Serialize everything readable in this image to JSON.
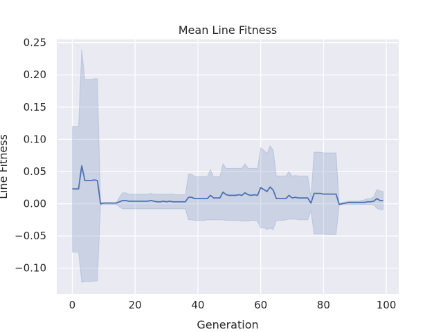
{
  "chart_data": {
    "type": "line",
    "title": "Mean Line Fitness",
    "xlabel": "Generation",
    "ylabel": "Line Fitness",
    "xlim": [
      -4.95,
      103.95
    ],
    "ylim": [
      -0.14,
      0.255
    ],
    "xticks": [
      0,
      20,
      40,
      60,
      80,
      100
    ],
    "yticks": [
      -0.1,
      -0.05,
      0.0,
      0.05,
      0.1,
      0.15,
      0.2,
      0.25
    ],
    "ytick_labels": [
      "−0.10",
      "−0.05",
      "0.00",
      "0.05",
      "0.10",
      "0.15",
      "0.20",
      "0.25"
    ],
    "grid": true,
    "colors": {
      "background": "#eaeaf2",
      "grid": "#ffffff",
      "line": "#4c72b0",
      "band": "#4c72b0"
    },
    "series": [
      {
        "x": [
          0,
          1,
          2,
          3,
          4,
          5,
          6,
          7,
          8,
          9,
          10,
          11,
          12,
          13,
          14,
          15,
          16,
          17,
          18,
          19,
          20,
          21,
          22,
          23,
          24,
          25,
          26,
          27,
          28,
          29,
          30,
          31,
          32,
          33,
          34,
          35,
          36,
          37,
          38,
          39,
          40,
          41,
          42,
          43,
          44,
          45,
          46,
          47,
          48,
          49,
          50,
          51,
          52,
          53,
          54,
          55,
          56,
          57,
          58,
          59,
          60,
          61,
          62,
          63,
          64,
          65,
          66,
          67,
          68,
          69,
          70,
          71,
          72,
          73,
          74,
          75,
          76,
          77,
          78,
          79,
          80,
          81,
          82,
          83,
          84,
          85,
          86,
          87,
          88,
          89,
          90,
          91,
          92,
          93,
          94,
          95,
          96,
          97,
          98,
          99
        ],
        "y": [
          0.023,
          0.023,
          0.023,
          0.059,
          0.036,
          0.036,
          0.036,
          0.037,
          0.036,
          0.0,
          0.001,
          0.001,
          0.001,
          0.001,
          0.001,
          0.003,
          0.005,
          0.005,
          0.004,
          0.004,
          0.004,
          0.004,
          0.004,
          0.004,
          0.004,
          0.005,
          0.004,
          0.003,
          0.003,
          0.004,
          0.003,
          0.004,
          0.003,
          0.003,
          0.003,
          0.003,
          0.003,
          0.01,
          0.01,
          0.008,
          0.008,
          0.008,
          0.008,
          0.008,
          0.013,
          0.009,
          0.009,
          0.009,
          0.018,
          0.014,
          0.013,
          0.013,
          0.013,
          0.014,
          0.013,
          0.017,
          0.014,
          0.013,
          0.014,
          0.013,
          0.025,
          0.022,
          0.019,
          0.026,
          0.021,
          0.008,
          0.008,
          0.008,
          0.008,
          0.013,
          0.009,
          0.01,
          0.009,
          0.009,
          0.009,
          0.009,
          0.001,
          0.016,
          0.016,
          0.016,
          0.015,
          0.015,
          0.015,
          0.015,
          0.015,
          -0.001,
          0.0,
          0.001,
          0.002,
          0.002,
          0.002,
          0.002,
          0.002,
          0.002,
          0.003,
          0.003,
          0.004,
          0.008,
          0.005,
          0.005
        ],
        "lower": [
          -0.075,
          -0.075,
          -0.075,
          -0.122,
          -0.121,
          -0.121,
          -0.121,
          -0.12,
          -0.12,
          -0.002,
          -0.001,
          -0.001,
          -0.001,
          -0.001,
          -0.001,
          -0.005,
          -0.008,
          -0.008,
          -0.008,
          -0.008,
          -0.008,
          -0.008,
          -0.008,
          -0.008,
          -0.008,
          -0.008,
          -0.008,
          -0.008,
          -0.008,
          -0.008,
          -0.008,
          -0.008,
          -0.008,
          -0.008,
          -0.008,
          -0.008,
          -0.008,
          -0.025,
          -0.025,
          -0.026,
          -0.026,
          -0.026,
          -0.026,
          -0.025,
          -0.025,
          -0.025,
          -0.025,
          -0.025,
          -0.025,
          -0.026,
          -0.026,
          -0.026,
          -0.026,
          -0.026,
          -0.027,
          -0.027,
          -0.027,
          -0.026,
          -0.026,
          -0.027,
          -0.038,
          -0.037,
          -0.04,
          -0.038,
          -0.04,
          -0.026,
          -0.026,
          -0.026,
          -0.025,
          -0.024,
          -0.024,
          -0.024,
          -0.025,
          -0.025,
          -0.025,
          -0.025,
          -0.011,
          -0.047,
          -0.047,
          -0.047,
          -0.047,
          -0.048,
          -0.048,
          -0.048,
          -0.048,
          -0.002,
          -0.001,
          -0.001,
          -0.001,
          -0.001,
          -0.001,
          -0.001,
          -0.001,
          -0.001,
          -0.001,
          -0.001,
          -0.002,
          -0.007,
          -0.009,
          -0.009
        ],
        "upper": [
          0.12,
          0.12,
          0.12,
          0.24,
          0.193,
          0.193,
          0.193,
          0.194,
          0.194,
          0.002,
          0.002,
          0.002,
          0.002,
          0.002,
          0.002,
          0.01,
          0.017,
          0.017,
          0.015,
          0.015,
          0.015,
          0.015,
          0.015,
          0.015,
          0.015,
          0.016,
          0.015,
          0.015,
          0.015,
          0.015,
          0.015,
          0.015,
          0.015,
          0.014,
          0.014,
          0.014,
          0.014,
          0.046,
          0.046,
          0.042,
          0.042,
          0.042,
          0.042,
          0.042,
          0.053,
          0.042,
          0.042,
          0.042,
          0.062,
          0.055,
          0.055,
          0.055,
          0.055,
          0.055,
          0.055,
          0.062,
          0.055,
          0.055,
          0.055,
          0.055,
          0.087,
          0.083,
          0.078,
          0.09,
          0.083,
          0.043,
          0.043,
          0.043,
          0.043,
          0.05,
          0.043,
          0.044,
          0.043,
          0.043,
          0.043,
          0.043,
          0.01,
          0.08,
          0.08,
          0.08,
          0.079,
          0.079,
          0.079,
          0.079,
          0.079,
          0.001,
          0.002,
          0.003,
          0.004,
          0.004,
          0.004,
          0.004,
          0.005,
          0.006,
          0.008,
          0.008,
          0.011,
          0.022,
          0.02,
          0.019
        ]
      }
    ]
  }
}
